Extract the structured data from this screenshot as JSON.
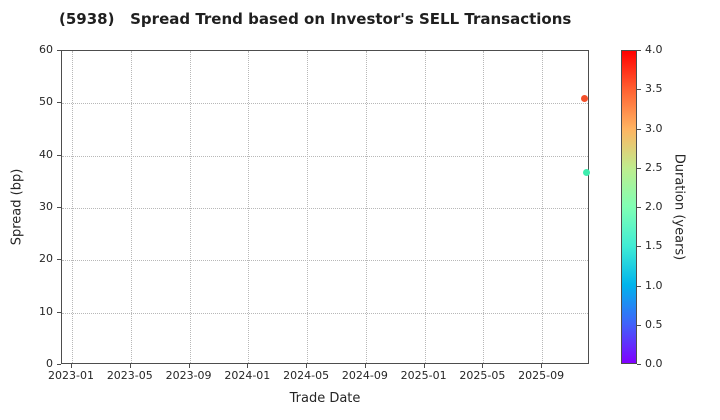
{
  "chart_data": {
    "type": "scatter",
    "title": "(5938)   Spread Trend based on Investor's SELL Transactions",
    "xlabel": "Trade Date",
    "ylabel": "Spread (bp)",
    "x_tick_labels": [
      "2023-01",
      "2023-05",
      "2023-09",
      "2024-01",
      "2024-05",
      "2024-09",
      "2025-01",
      "2025-05",
      "2025-09"
    ],
    "x_first_tick_frac": 0.019,
    "x_tick_step_frac": 0.1113,
    "y_ticks": [
      0,
      10,
      20,
      30,
      40,
      50,
      60
    ],
    "ylim": [
      0,
      60
    ],
    "grid": true,
    "legend_position": "none",
    "points": [
      {
        "trade_date": "2025-11",
        "spread_bp": 51.0,
        "duration_years": 3.6,
        "x_frac": 0.989,
        "color": "#f4502a"
      },
      {
        "trade_date": "2025-12",
        "spread_bp": 36.7,
        "duration_years": 1.9,
        "x_frac": 0.994,
        "color": "#3fedae"
      }
    ],
    "colorbar": {
      "label": "Duration (years)",
      "min": 0.0,
      "max": 4.0,
      "tick_labels": [
        "0.0",
        "0.5",
        "1.0",
        "1.5",
        "2.0",
        "2.5",
        "3.0",
        "3.5",
        "4.0"
      ],
      "colormap": "rainbow",
      "gradient_stops": [
        "#8000ff",
        "#4062fa",
        "#00b4ec",
        "#40ecd4",
        "#80ffb4",
        "#bfec8e",
        "#ffb462",
        "#ff6232",
        "#ff0000"
      ]
    }
  }
}
